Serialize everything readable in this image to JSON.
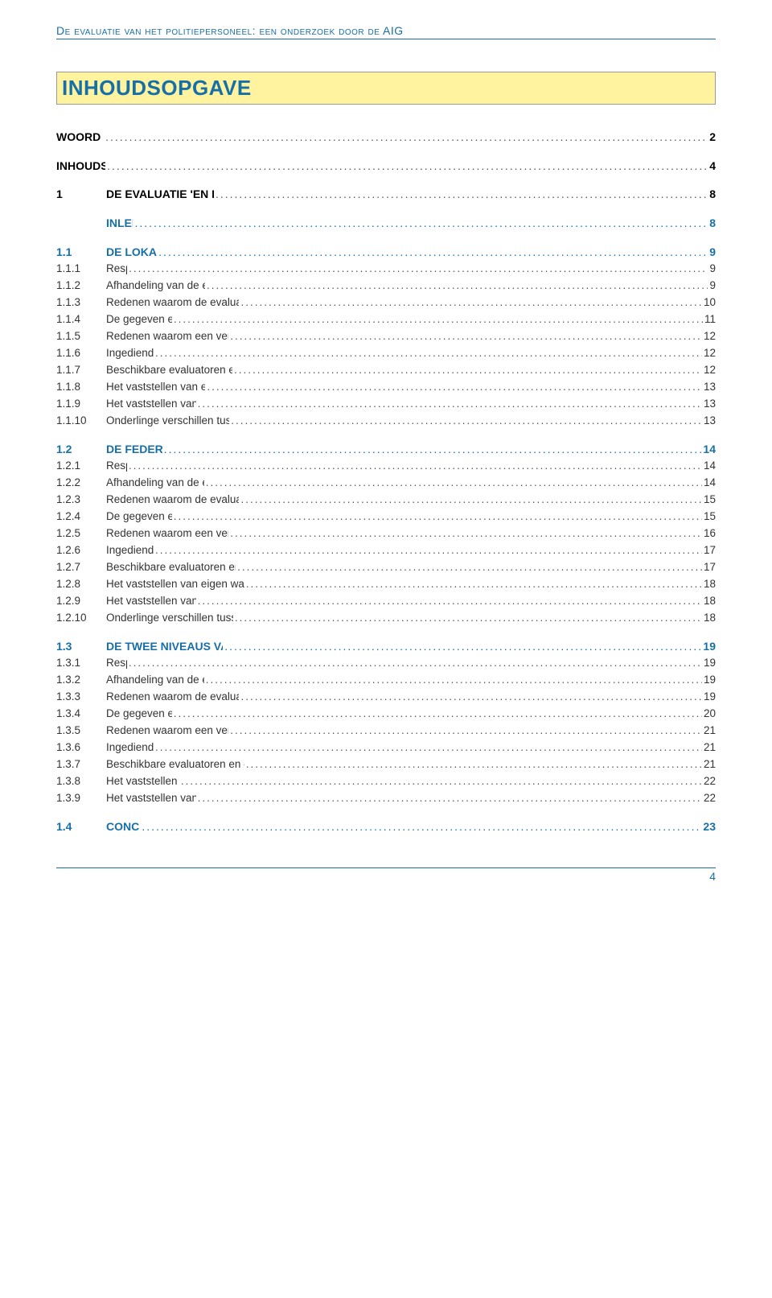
{
  "colors": {
    "accent": "#176fa8",
    "title_bg": "#fff3a0",
    "title_border": "#999999",
    "page_bg": "#ffffff",
    "body_text": "#333333"
  },
  "header": {
    "running_title": "De evaluatie van het politiepersoneel: een onderzoek door de AIG"
  },
  "main_title": "INHOUDSOPGAVE",
  "toc": [
    {
      "level": 0,
      "num": "",
      "label": "WOORD VOORAF",
      "page": "2"
    },
    {
      "level": 0,
      "num": "",
      "label": "INHOUDSOPGAVE",
      "page": "4"
    },
    {
      "level": 1,
      "num": "1",
      "label": "DE EVALUATIE 'EN RÉGIME': STAND VAN ZAKEN",
      "page": "8"
    },
    {
      "level": 2,
      "num": "",
      "label": "INLEIDING",
      "page": "8"
    },
    {
      "level": 2,
      "num": "1.1",
      "label": "DE LOKALE POLITIE",
      "page": "9"
    },
    {
      "level": 3,
      "num": "1.1.1",
      "label": "Respons",
      "page": "9"
    },
    {
      "level": 3,
      "num": "1.1.2",
      "label": "Afhandeling van de eerste evaluaties 'en régime'",
      "page": "9"
    },
    {
      "level": 3,
      "num": "1.1.3",
      "label": "Redenen waarom de evaluaties nog niet of laattijdig uitgevoerd werden",
      "page": "10"
    },
    {
      "level": 3,
      "num": "1.1.4",
      "label": "De gegeven eindvermeldingen",
      "page": "11"
    },
    {
      "level": 3,
      "num": "1.1.5",
      "label": "Redenen waarom een vermelding \"onvoldoende\" werd gegeven",
      "page": "12"
    },
    {
      "level": 3,
      "num": "1.1.6",
      "label": "Ingediende beroepen",
      "page": "12"
    },
    {
      "level": 3,
      "num": "1.1.7",
      "label": "Beschikbare evaluatoren en evaluatieadviseurs bij de lokale politie",
      "page": "12"
    },
    {
      "level": 3,
      "num": "1.1.8",
      "label": "Het vaststellen van eigen waarden voor de zones",
      "page": "13"
    },
    {
      "level": 3,
      "num": "1.1.9",
      "label": "Het vaststellen van specifieke competenties",
      "page": "13"
    },
    {
      "level": 3,
      "num": "1.1.10",
      "label": "Onderlinge verschillen tussen de zones naargelang de categorie",
      "page": "13"
    },
    {
      "level": 2,
      "num": "1.2",
      "label": "DE FEDERALE POLITIE",
      "page": "14"
    },
    {
      "level": 3,
      "num": "1.2.1",
      "label": "Respons",
      "page": "14"
    },
    {
      "level": 3,
      "num": "1.2.2",
      "label": "Afhandeling van de eerste evaluaties 'en régime'",
      "page": "14"
    },
    {
      "level": 3,
      "num": "1.2.3",
      "label": "Redenen waarom de evaluaties nog niet of laattijdig uitgevoerd werden",
      "page": "15"
    },
    {
      "level": 3,
      "num": "1.2.4",
      "label": "De gegeven eindvermeldingen",
      "page": "15"
    },
    {
      "level": 3,
      "num": "1.2.5",
      "label": "Redenen waarom een vermelding \"onvoldoende\" werd gegeven",
      "page": "16"
    },
    {
      "level": 3,
      "num": "1.2.6",
      "label": "Ingediende beroepen",
      "page": "17"
    },
    {
      "level": 3,
      "num": "1.2.7",
      "label": "Beschikbare evaluatoren en evaluatieadviseurs bij de federale politie",
      "page": "17"
    },
    {
      "level": 3,
      "num": "1.2.8",
      "label": "Het vaststellen van eigen waarden voor de diensten van de federale politie",
      "page": "18"
    },
    {
      "level": 3,
      "num": "1.2.9",
      "label": "Het vaststellen van specifieke competenties",
      "page": "18"
    },
    {
      "level": 3,
      "num": "1.2.10",
      "label": "Onderlinge verschillen tussen de diensten naargelang de categorie",
      "page": "18"
    },
    {
      "level": 2,
      "num": "1.3",
      "label": "DE TWEE NIVEAUS VAN DE GEÏNTEGREERDE POLITIE",
      "page": "19"
    },
    {
      "level": 3,
      "num": "1.3.1",
      "label": "Respons",
      "page": "19"
    },
    {
      "level": 3,
      "num": "1.3.2",
      "label": "Afhandeling van de eerste evaluaties 'en régime'",
      "page": "19"
    },
    {
      "level": 3,
      "num": "1.3.3",
      "label": "Redenen waarom de evaluaties nog niet of laattijdig uitgevoerd werden",
      "page": "19"
    },
    {
      "level": 3,
      "num": "1.3.4",
      "label": "De gegeven eindvermeldingen",
      "page": "20"
    },
    {
      "level": 3,
      "num": "1.3.5",
      "label": "Redenen waarom een vermelding \"onvoldoende\" werd gegeven",
      "page": "21"
    },
    {
      "level": 3,
      "num": "1.3.6",
      "label": "Ingediende beroepen",
      "page": "21"
    },
    {
      "level": 3,
      "num": "1.3.7",
      "label": "Beschikbare evaluatoren en evaluatieadviseurs bij de geïntegreerde politie",
      "page": "21"
    },
    {
      "level": 3,
      "num": "1.3.8",
      "label": "Het vaststellen van eigen waarden",
      "page": "22"
    },
    {
      "level": 3,
      "num": "1.3.9",
      "label": "Het vaststellen van specifieke competenties",
      "page": "22"
    },
    {
      "level": 2,
      "num": "1.4",
      "label": "CONCLUSIES",
      "page": "23"
    }
  ],
  "footer": {
    "page_number": "4"
  }
}
